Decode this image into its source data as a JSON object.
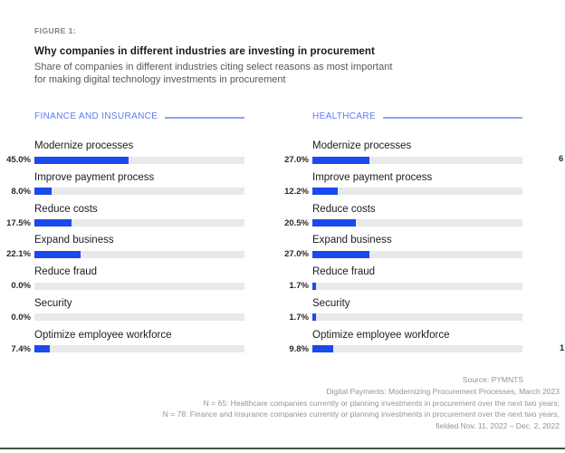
{
  "figure": {
    "label": "FIGURE 1:",
    "title": "Why companies in different industries are investing in procurement",
    "subtitle": "Share of companies in different industries citing select reasons as most important for making digital technology investments in procurement"
  },
  "colors": {
    "bar_fill": "#1b49f0",
    "bar_track": "#e7e9ea",
    "column_header_text": "#5a7bf5",
    "column_header_rule": "#8fa3f2",
    "bottom_rule": "#465243"
  },
  "chart_data": {
    "type": "bar",
    "orientation": "horizontal",
    "unit": "%",
    "xlim": [
      0,
      100
    ],
    "title": "Why companies in different industries are investing in procurement",
    "categories": [
      "Modernize processes",
      "Improve payment process",
      "Reduce costs",
      "Expand business",
      "Reduce fraud",
      "Security",
      "Optimize employee workforce"
    ],
    "series": [
      {
        "name": "FINANCE AND INSURANCE",
        "values": [
          45.0,
          8.0,
          17.5,
          22.1,
          0.0,
          0.0,
          7.4
        ]
      },
      {
        "name": "HEALTHCARE",
        "values": [
          27.0,
          12.2,
          20.5,
          27.0,
          1.7,
          1.7,
          9.8
        ]
      }
    ]
  },
  "cutoff_column": {
    "note_visible_fragments_only": true,
    "fragments": [
      {
        "row": 0,
        "text": "6"
      },
      {
        "row": 6,
        "text": "1"
      }
    ]
  },
  "footer": {
    "lines": [
      "Source: PYMNTS",
      "Digital Payments: Modernizing Procurement Processes, March 2023",
      "N = 65: Healthcare companies currently or planning investments in procurement over the next two years;",
      "N = 78: Finance and insurance companies currently or planning investments in procurement over the next two years,",
      "fielded Nov. 11, 2022 – Dec. 2, 2022"
    ]
  }
}
